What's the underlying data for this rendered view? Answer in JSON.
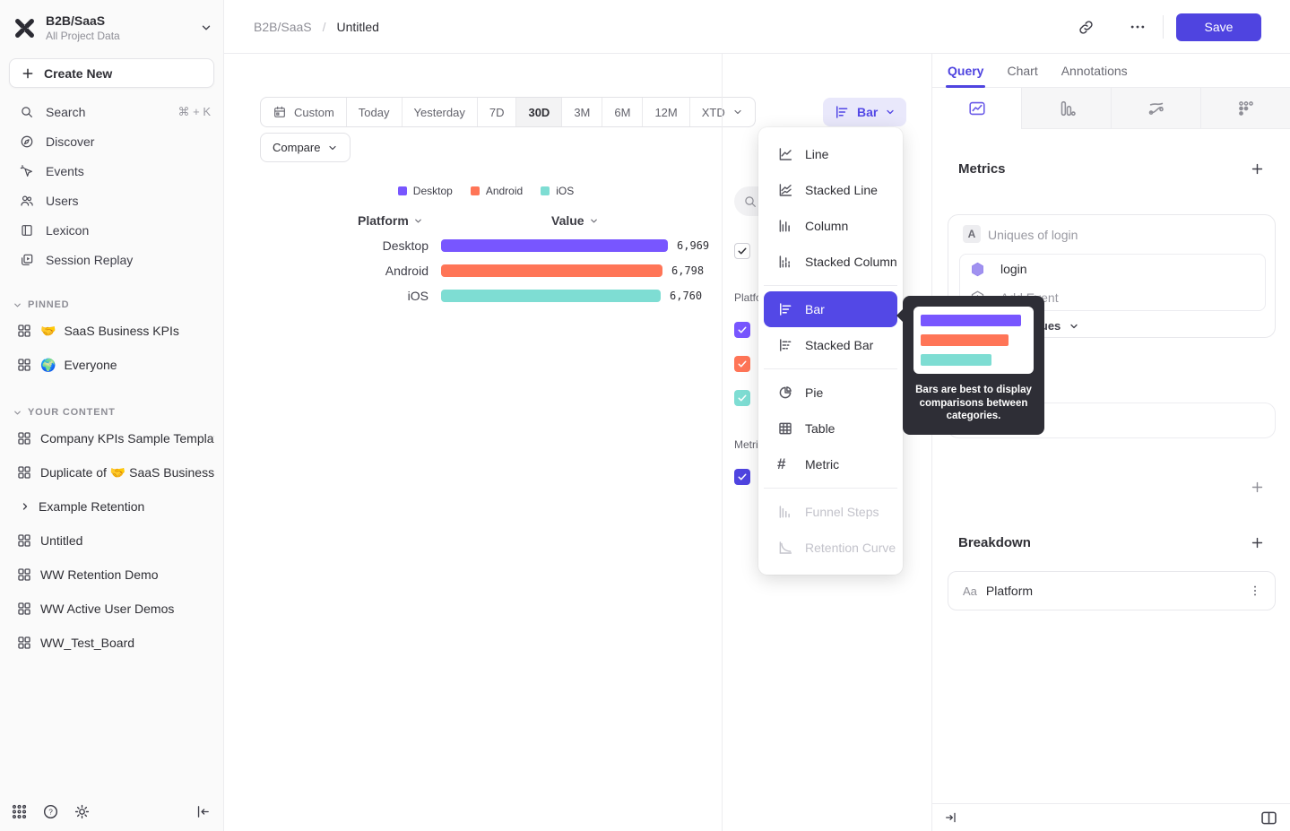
{
  "project": {
    "name": "B2B/SaaS",
    "subtitle": "All Project Data"
  },
  "sidebar": {
    "create_new": "Create New",
    "nav": [
      {
        "label": "Search",
        "shortcut": "⌘ + K"
      },
      {
        "label": "Discover"
      },
      {
        "label": "Events"
      },
      {
        "label": "Users"
      },
      {
        "label": "Lexicon"
      },
      {
        "label": "Session Replay"
      }
    ],
    "pinned_title": "PINNED",
    "pinned": [
      {
        "emoji": "🤝",
        "label": "SaaS Business KPIs"
      },
      {
        "emoji": "🌍",
        "label": "Everyone"
      }
    ],
    "your_content_title": "YOUR CONTENT",
    "your_content": [
      "Company KPIs Sample Templat",
      "Duplicate of 🤝 SaaS Business",
      "Example Retention",
      "Untitled",
      "WW Retention Demo",
      "WW Active User Demos",
      "WW_Test_Board"
    ]
  },
  "header": {
    "breadcrumb_root": "B2B/SaaS",
    "breadcrumb_sep": "/",
    "breadcrumb_current": "Untitled",
    "save": "Save"
  },
  "toolbar": {
    "date_ranges": [
      "Custom",
      "Today",
      "Yesterday",
      "7D",
      "30D",
      "3M",
      "6M",
      "12M",
      "XTD"
    ],
    "selected_range": "30D",
    "compare": "Compare",
    "chart_type": "Bar"
  },
  "chart_data": {
    "type": "bar",
    "title": "",
    "orientation": "horizontal",
    "columns": [
      "Platform",
      "Value"
    ],
    "categories": [
      "Desktop",
      "Android",
      "iOS"
    ],
    "values": [
      6969,
      6798,
      6760
    ],
    "value_labels": [
      "6,969",
      "6,798",
      "6,760"
    ],
    "series_colors": [
      "#7856FF",
      "#FF7557",
      "#7EDDD3"
    ],
    "legend": [
      "Desktop",
      "Android",
      "iOS"
    ],
    "legend_position": "top",
    "xlim": [
      0,
      6969
    ],
    "grid": false
  },
  "chart_menu": {
    "items": [
      "Line",
      "Stacked Line",
      "Column",
      "Stacked Column",
      "Bar",
      "Stacked Bar",
      "Pie",
      "Table",
      "Metric",
      "Funnel Steps",
      "Retention Curve"
    ],
    "selected": "Bar",
    "disabled": [
      "Funnel Steps",
      "Retention Curve"
    ]
  },
  "tooltip": {
    "line1": "Bars are best to display",
    "line2": "comparisons between",
    "line3": "categories."
  },
  "segment_panel": {
    "platform_label": "Platform",
    "metrics_label": "Metrics"
  },
  "query_panel": {
    "tabs": [
      "Query",
      "Chart",
      "Annotations"
    ],
    "active_tab": "Query",
    "metrics_title": "Metrics",
    "metric_row_letter": "A",
    "metric_row_name": "Uniques of login",
    "event_name": "login",
    "add_event": "Add Event",
    "aggregation": "Uniques",
    "breakdown_title": "Breakdown",
    "breakdown_type": "Aa",
    "breakdown_property": "Platform"
  },
  "colors": {
    "accent": "#4F44E0",
    "selected_menu_item": "#5348E6",
    "bar_purple": "#7856FF",
    "bar_orange": "#FF7557",
    "bar_teal": "#7EDDD3",
    "metrics_checkbox": "#4F44E0",
    "tooltip_bg": "#2E2E36"
  }
}
